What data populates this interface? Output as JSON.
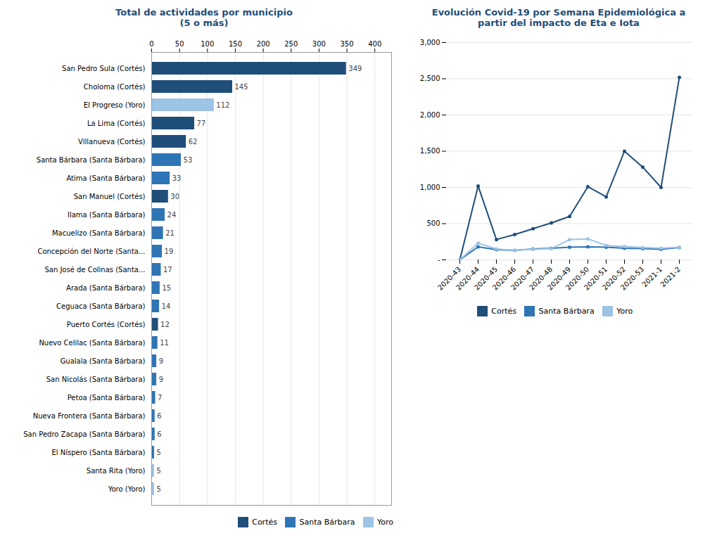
{
  "chart_data": [
    {
      "type": "bar",
      "title": "Total de actividades por municipio\n(5 o más)",
      "orientation": "horizontal",
      "stacked": true,
      "categories": [
        "San Pedro Sula (Cortés)",
        "Choloma (Cortés)",
        "El Progreso (Yoro)",
        "La Lima (Cortés)",
        "Villanueva (Cortés)",
        "Santa Bárbara (Santa Bárbara)",
        "Atima (Santa Bárbara)",
        "San Manuel (Cortés)",
        "Ilama (Santa Bárbara)",
        "Macuelizo (Santa Bárbara)",
        "Concepción del Norte (Santa...",
        "San José de Colinas (Santa...",
        "Arada (Santa Bárbara)",
        "Ceguaca (Santa Bárbara)",
        "Puerto Cortés (Cortés)",
        "Nuevo Celilac (Santa Bárbara)",
        "Gualala (Santa Bárbara)",
        "San Nicolás (Santa Bárbara)",
        "Petoa (Santa Bárbara)",
        "Nueva Frontera (Santa Bárbara)",
        "San Pedro Zacapa (Santa Bárbara)",
        "El Níspero (Santa Bárbara)",
        "Santa Rita (Yoro)",
        "Yoro (Yoro)"
      ],
      "series": [
        {
          "name": "Cortés",
          "color": "#1f4e79",
          "values": [
            349,
            145,
            null,
            77,
            62,
            null,
            null,
            30,
            null,
            null,
            null,
            null,
            null,
            null,
            12,
            null,
            null,
            null,
            null,
            null,
            null,
            null,
            null,
            null
          ]
        },
        {
          "name": "Santa Bárbara",
          "color": "#2e75b6",
          "values": [
            null,
            null,
            null,
            null,
            null,
            53,
            33,
            null,
            24,
            21,
            19,
            17,
            15,
            14,
            null,
            11,
            9,
            9,
            7,
            6,
            6,
            5,
            null,
            null
          ]
        },
        {
          "name": "Yoro",
          "color": "#9dc3e6",
          "values": [
            null,
            null,
            112,
            null,
            null,
            null,
            null,
            null,
            null,
            null,
            null,
            null,
            null,
            null,
            null,
            null,
            null,
            null,
            null,
            null,
            null,
            null,
            5,
            5
          ]
        }
      ],
      "xlim": [
        0,
        430
      ],
      "xticks": [
        0,
        50,
        100,
        150,
        200,
        250,
        300,
        350,
        400
      ],
      "grid": true,
      "data_labels": true,
      "legend": "lower right"
    },
    {
      "type": "line",
      "title": "Evolución Covid-19 por Semana Epidemiológica a\npartir del impacto de Eta e Iota",
      "categories": [
        "2020-43",
        "2020-44",
        "2020-45",
        "2020-46",
        "2020-47",
        "2020-48",
        "2020-49",
        "2020-50",
        "2020-51",
        "2020-52",
        "2020-53",
        "2021-1",
        "2021-2"
      ],
      "series": [
        {
          "name": "Cortés",
          "color": "#1f4e79",
          "values": [
            0,
            1020,
            280,
            350,
            430,
            510,
            600,
            1010,
            870,
            1500,
            1280,
            1000,
            2520
          ]
        },
        {
          "name": "Santa Bárbara",
          "color": "#2e75b6",
          "values": [
            0,
            180,
            140,
            130,
            150,
            160,
            175,
            180,
            175,
            160,
            155,
            145,
            170
          ]
        },
        {
          "name": "Yoro",
          "color": "#9dc3e6",
          "values": [
            0,
            230,
            150,
            130,
            145,
            155,
            280,
            290,
            200,
            185,
            170,
            160,
            175
          ]
        }
      ],
      "ylim": [
        0,
        3000
      ],
      "yticks": [
        {
          "value": 0,
          "label": "-"
        },
        500,
        {
          "value": 1000,
          "label": "1,000"
        },
        {
          "value": 1500,
          "label": "1,500"
        },
        {
          "value": 2000,
          "label": "2,000"
        },
        {
          "value": 2500,
          "label": "2,500"
        },
        {
          "value": 3000,
          "label": "3,000"
        }
      ],
      "grid": true,
      "marker": "o",
      "legend": "lower center"
    }
  ]
}
